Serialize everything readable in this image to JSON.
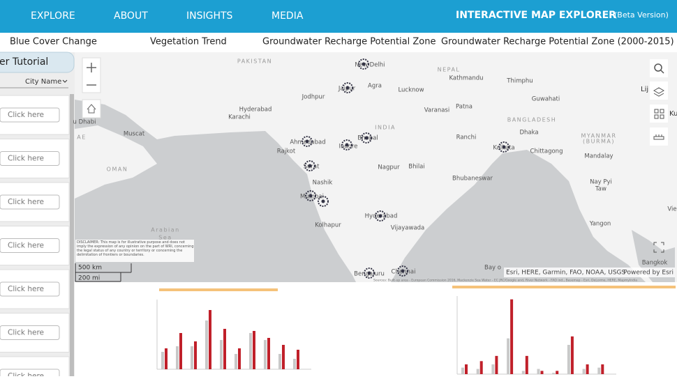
{
  "nav": {
    "items": [
      "EXPLORE",
      "ABOUT",
      "INSIGHTS",
      "MEDIA"
    ],
    "title": "INTERACTIVE MAP EXPLORER",
    "subtitle": "(Beta Version)"
  },
  "tabs": [
    "Blue Cover Change",
    "Vegetation Trend",
    "Groundwater Recharge Potential Zone",
    "Groundwater Recharge Potential Zone (2000-2015)"
  ],
  "sidebar": {
    "tutorial": "er Tutorial",
    "sort": "City Name",
    "buttons": [
      "Click here",
      "Click here",
      "Click here",
      "Click here",
      "Click here",
      "Click here",
      "Click here"
    ]
  },
  "map": {
    "labels": [
      "PAKISTAN",
      "New Delhi",
      "NEPAL",
      "Kathmandu",
      "Thimphu",
      "Jaipur",
      "Agra",
      "Lucknow",
      "Jodhpur",
      "Guwahati",
      "Hyderabad",
      "Karachi",
      "Varanasi",
      "Patna",
      "BANGLADESH",
      "u Dhabi",
      "INDIA",
      "Muscat",
      "AE",
      "Dhaka",
      "MYANMAR",
      "(BURMA)",
      "Ranchi",
      "Bhopal",
      "Ahmedabad",
      "Indore",
      "Kolkata",
      "Chittagong",
      "Mandalay",
      "Rajkot",
      "OMAN",
      "Surat",
      "Nagpur",
      "Bhilai",
      "Nay Pyi",
      "Taw",
      "Bhubaneswar",
      "Nashik",
      "Mumbai",
      "Hyderabad",
      "Vijayawada",
      "Kolhapur",
      "Yangon",
      "Arabian",
      "Sea",
      "Bangkok",
      "Bay o",
      "Bengaluru",
      "Chennai",
      "Vie"
    ],
    "side_labels": [
      "Lij",
      "Ku"
    ],
    "disclaimer": "DISCLAIMER: This map is for illustrative purpose and does not imply the expression of any opinion on the part of WRI, concerning the legal status of any country or territory or concerning the delimitation of frontiers or boundaries.",
    "scale": [
      "500 km",
      "200 mi"
    ],
    "attribution": "Esri, HERE, Garmin, FAO, NOAA, USGS",
    "powered": "Powered by Esri",
    "sources": "Sources: Built-up area - European Commission 2016, Mackenzie Sea Water - EC JRC/Google and, River Network - FAO ind., Basemap - Esri, DeLorme, HERE, MapmyIndia"
  },
  "charts": [
    {
      "type": "bar",
      "ylim": [
        0,
        100
      ],
      "series": [
        {
          "color": "#c9c9c9",
          "values": [
            25,
            33,
            33,
            70,
            42,
            22,
            52,
            42,
            22,
            15
          ]
        },
        {
          "color": "#c0202a",
          "values": [
            30,
            52,
            40,
            85,
            58,
            30,
            55,
            45,
            35,
            28
          ]
        }
      ]
    },
    {
      "type": "bar",
      "ylim": [
        0,
        120
      ],
      "series": [
        {
          "color": "#c9c9c9",
          "values": [
            10,
            8,
            15,
            55,
            5,
            8,
            2,
            45,
            8,
            10
          ]
        },
        {
          "color": "#c0202a",
          "values": [
            15,
            20,
            28,
            115,
            28,
            5,
            5,
            58,
            15,
            15
          ]
        }
      ]
    }
  ]
}
